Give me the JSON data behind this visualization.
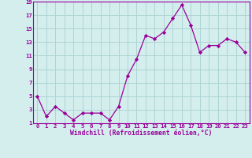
{
  "x": [
    0,
    1,
    2,
    3,
    4,
    5,
    6,
    7,
    8,
    9,
    10,
    11,
    12,
    13,
    14,
    15,
    16,
    17,
    18,
    19,
    20,
    21,
    22,
    23
  ],
  "y": [
    5.0,
    2.0,
    3.5,
    2.5,
    1.5,
    2.5,
    2.5,
    2.5,
    1.5,
    3.5,
    8.0,
    10.5,
    14.0,
    13.5,
    14.5,
    16.5,
    18.5,
    15.5,
    11.5,
    12.5,
    12.5,
    13.5,
    13.0,
    11.5
  ],
  "xlim": [
    -0.5,
    23.5
  ],
  "ylim": [
    1,
    19
  ],
  "yticks": [
    1,
    3,
    5,
    7,
    9,
    11,
    13,
    15,
    17,
    19
  ],
  "xtick_labels": [
    "0",
    "1",
    "2",
    "3",
    "4",
    "5",
    "6",
    "7",
    "8",
    "9",
    "10",
    "11",
    "12",
    "13",
    "14",
    "15",
    "16",
    "17",
    "18",
    "19",
    "20",
    "21",
    "22",
    "23"
  ],
  "xlabel": "Windchill (Refroidissement éolien,°C)",
  "line_color": "#990099",
  "marker_color": "#990099",
  "bg_color": "#d4eeee",
  "grid_color": "#aed4d4",
  "label_color": "#990099",
  "tick_color": "#990099",
  "spine_color": "#990099",
  "tick_fontsize": 5.2,
  "xlabel_fontsize": 5.8
}
